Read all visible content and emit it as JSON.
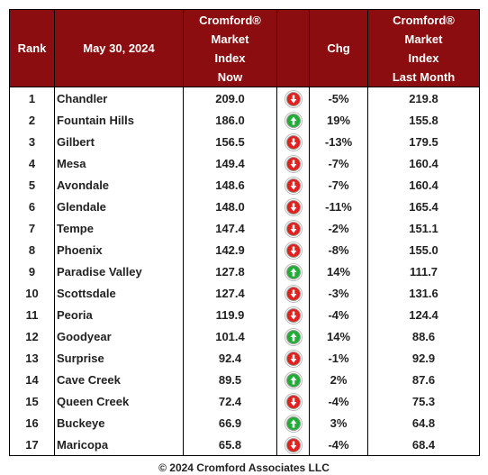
{
  "header": {
    "rank": "Rank",
    "date": "May 30, 2024",
    "now": [
      "Cromford®",
      "Market",
      "Index",
      "Now"
    ],
    "chg": "Chg",
    "last": [
      "Cromford®",
      "Market",
      "Index",
      "Last Month"
    ]
  },
  "rows": [
    {
      "rank": "1",
      "city": "Chandler",
      "now": "209.0",
      "dir": "down",
      "chg": "-5%",
      "last": "219.8"
    },
    {
      "rank": "2",
      "city": "Fountain Hills",
      "now": "186.0",
      "dir": "up",
      "chg": "19%",
      "last": "155.8"
    },
    {
      "rank": "3",
      "city": "Gilbert",
      "now": "156.5",
      "dir": "down",
      "chg": "-13%",
      "last": "179.5"
    },
    {
      "rank": "4",
      "city": "Mesa",
      "now": "149.4",
      "dir": "down",
      "chg": "-7%",
      "last": "160.4"
    },
    {
      "rank": "5",
      "city": "Avondale",
      "now": "148.6",
      "dir": "down",
      "chg": "-7%",
      "last": "160.4"
    },
    {
      "rank": "6",
      "city": "Glendale",
      "now": "148.0",
      "dir": "down",
      "chg": "-11%",
      "last": "165.4"
    },
    {
      "rank": "7",
      "city": "Tempe",
      "now": "147.4",
      "dir": "down",
      "chg": "-2%",
      "last": "151.1"
    },
    {
      "rank": "8",
      "city": "Phoenix",
      "now": "142.9",
      "dir": "down",
      "chg": "-8%",
      "last": "155.0"
    },
    {
      "rank": "9",
      "city": "Paradise Valley",
      "now": "127.8",
      "dir": "up",
      "chg": "14%",
      "last": "111.7"
    },
    {
      "rank": "10",
      "city": "Scottsdale",
      "now": "127.4",
      "dir": "down",
      "chg": "-3%",
      "last": "131.6"
    },
    {
      "rank": "11",
      "city": "Peoria",
      "now": "119.9",
      "dir": "down",
      "chg": "-4%",
      "last": "124.4"
    },
    {
      "rank": "12",
      "city": "Goodyear",
      "now": "101.4",
      "dir": "up",
      "chg": "14%",
      "last": "88.6"
    },
    {
      "rank": "13",
      "city": "Surprise",
      "now": "92.4",
      "dir": "down",
      "chg": "-1%",
      "last": "92.9"
    },
    {
      "rank": "14",
      "city": "Cave Creek",
      "now": "89.5",
      "dir": "up",
      "chg": "2%",
      "last": "87.6"
    },
    {
      "rank": "15",
      "city": "Queen Creek",
      "now": "72.4",
      "dir": "down",
      "chg": "-4%",
      "last": "75.3"
    },
    {
      "rank": "16",
      "city": "Buckeye",
      "now": "66.9",
      "dir": "up",
      "chg": "3%",
      "last": "64.8"
    },
    {
      "rank": "17",
      "city": "Maricopa",
      "now": "65.8",
      "dir": "down",
      "chg": "-4%",
      "last": "68.4"
    }
  ],
  "footer": "© 2024 Cromford Associates LLC",
  "colors": {
    "header_bg": "#8b0d0f",
    "up": "#1fae33",
    "down": "#e3201b"
  },
  "icons": {
    "up": "green-up-arrow-icon",
    "down": "red-down-arrow-icon"
  }
}
